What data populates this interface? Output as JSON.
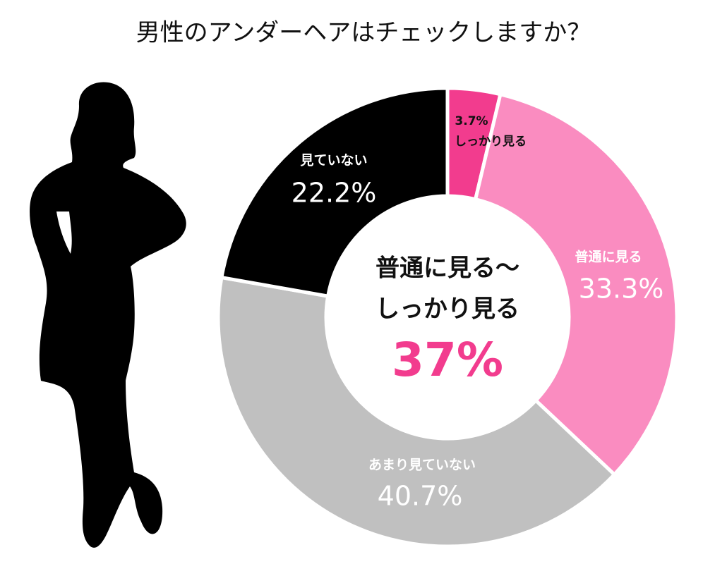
{
  "chart_data": {
    "type": "pie",
    "donut": true,
    "title": "男性のアンダーヘアはチェックしますか？",
    "categories": [
      "しっかり見る",
      "普通に見る",
      "あまり見ていない",
      "見ていない"
    ],
    "values": [
      3.7,
      33.3,
      40.7,
      22.2
    ],
    "value_labels": [
      "3.7%",
      "33.3%",
      "40.7%",
      "22.2%"
    ],
    "colors": [
      "#f23c8e",
      "#fa8cc0",
      "#c0c0c0",
      "#000000"
    ],
    "center_lines": [
      "普通に見る〜",
      "しっかり見る"
    ],
    "center_value": "37%"
  }
}
